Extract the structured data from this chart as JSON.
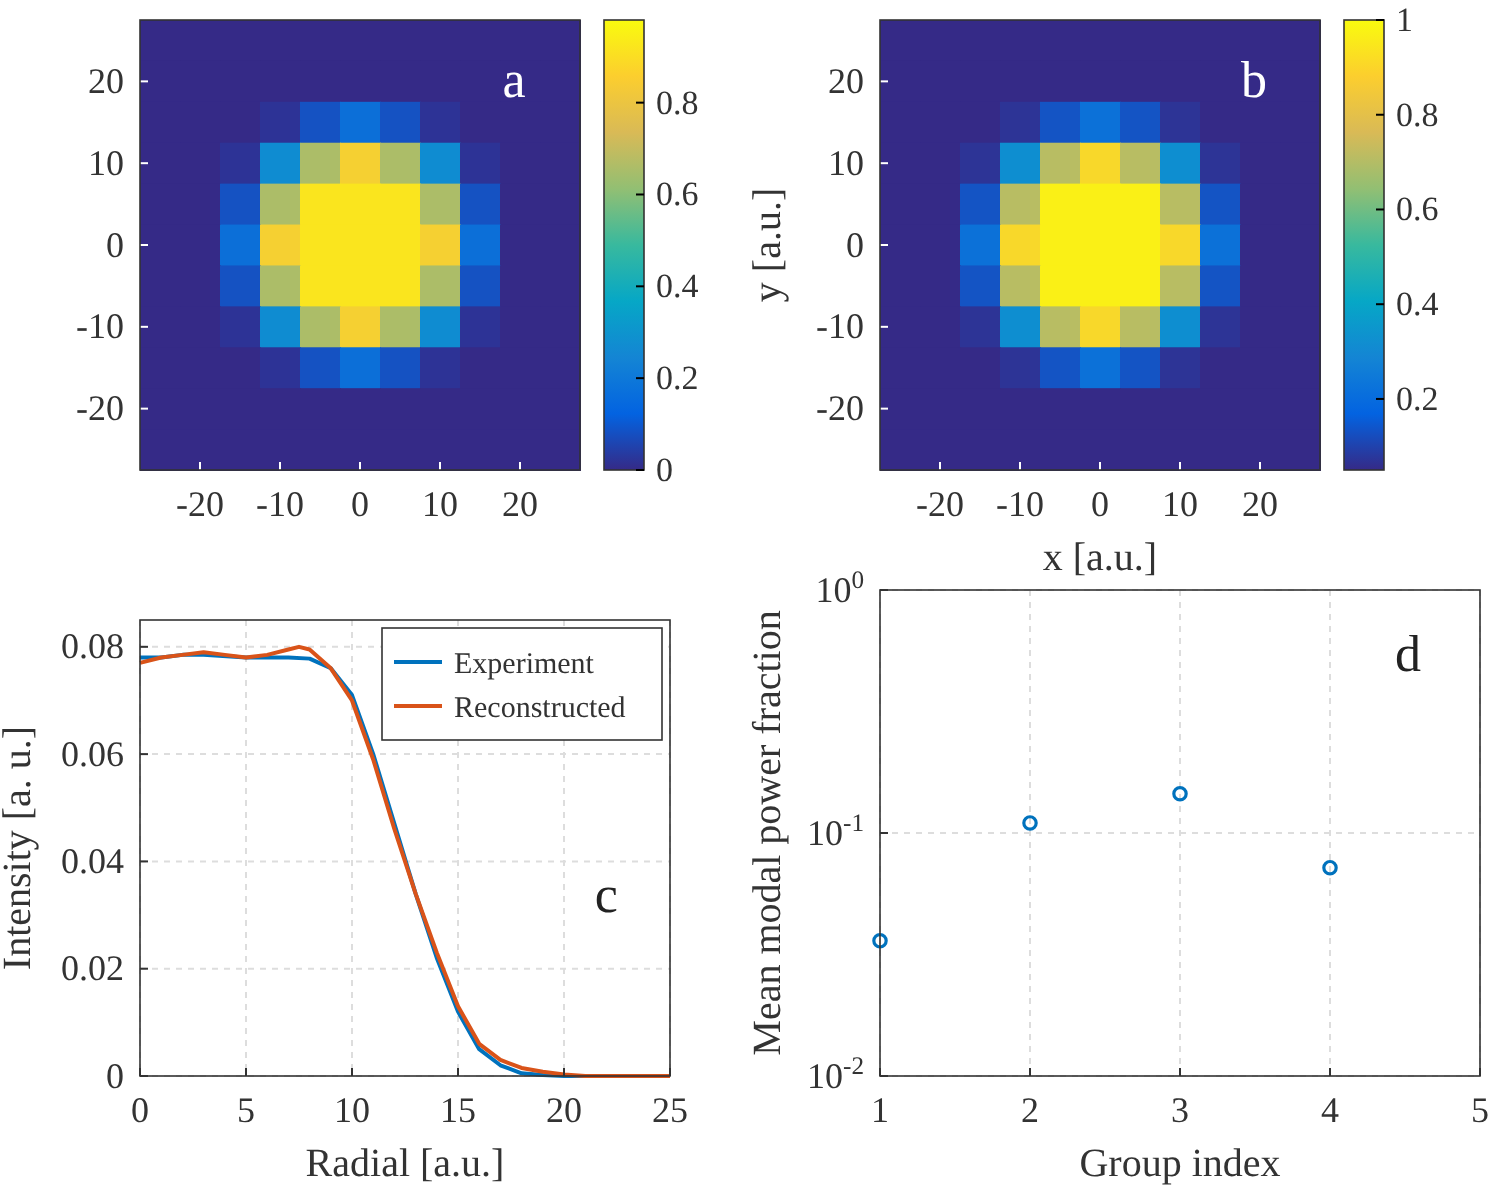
{
  "chart_data": [
    {
      "type": "heatmap",
      "annotations": [
        "a"
      ],
      "categories": [
        null,
        "-20",
        null,
        "-10",
        null,
        "0",
        null,
        "10",
        null,
        "20",
        null
      ],
      "y_categories": [
        null,
        "20",
        null,
        "10",
        null,
        "0",
        null,
        "-10",
        null,
        "-20",
        null
      ],
      "cells": [
        [
          0,
          0,
          0,
          0,
          0,
          0,
          0,
          0,
          0,
          0,
          0
        ],
        [
          0,
          0,
          0,
          0,
          0,
          0,
          0,
          0,
          0,
          0,
          0
        ],
        [
          0,
          0,
          0,
          0.02,
          0.09,
          0.17,
          0.09,
          0.02,
          0,
          0,
          0
        ],
        [
          0,
          0,
          0.02,
          0.27,
          0.66,
          0.85,
          0.66,
          0.27,
          0.02,
          0,
          0
        ],
        [
          0,
          0,
          0.09,
          0.66,
          0.92,
          0.92,
          0.92,
          0.66,
          0.09,
          0,
          0
        ],
        [
          0,
          0,
          0.17,
          0.85,
          0.92,
          0.92,
          0.92,
          0.85,
          0.17,
          0,
          0
        ],
        [
          0,
          0,
          0.09,
          0.66,
          0.92,
          0.92,
          0.92,
          0.66,
          0.09,
          0,
          0
        ],
        [
          0,
          0,
          0.02,
          0.27,
          0.66,
          0.85,
          0.66,
          0.27,
          0.02,
          0,
          0
        ],
        [
          0,
          0,
          0,
          0.02,
          0.09,
          0.17,
          0.09,
          0.02,
          0,
          0,
          0
        ],
        [
          0,
          0,
          0,
          0,
          0,
          0,
          0,
          0,
          0,
          0,
          0
        ],
        [
          0,
          0,
          0,
          0,
          0,
          0,
          0,
          0,
          0,
          0,
          0
        ]
      ],
      "clim": [
        0,
        0.98
      ],
      "cticks": [
        0,
        0.2,
        0.4,
        0.6,
        0.8
      ]
    },
    {
      "type": "heatmap",
      "annotations": [
        "b"
      ],
      "xlabel": "x [a.u.]",
      "ylabel": "y [a.u.]",
      "categories": [
        null,
        "-20",
        null,
        "-10",
        null,
        "0",
        null,
        "10",
        null,
        "20",
        null
      ],
      "y_categories": [
        null,
        "20",
        null,
        "10",
        null,
        "0",
        null,
        "-10",
        null,
        "-20",
        null
      ],
      "cells": [
        [
          0.05,
          0.05,
          0.05,
          0.05,
          0.05,
          0.05,
          0.05,
          0.05,
          0.05,
          0.05,
          0.05
        ],
        [
          0.05,
          0.05,
          0.05,
          0.05,
          0.05,
          0.05,
          0.05,
          0.05,
          0.05,
          0.05,
          0.05
        ],
        [
          0.05,
          0.05,
          0.05,
          0.07,
          0.14,
          0.22,
          0.14,
          0.07,
          0.05,
          0.05,
          0.05
        ],
        [
          0.05,
          0.05,
          0.07,
          0.32,
          0.71,
          0.9,
          0.71,
          0.32,
          0.07,
          0.05,
          0.05
        ],
        [
          0.05,
          0.05,
          0.14,
          0.71,
          0.97,
          0.97,
          0.97,
          0.71,
          0.14,
          0.05,
          0.05
        ],
        [
          0.05,
          0.05,
          0.22,
          0.9,
          0.97,
          0.97,
          0.97,
          0.9,
          0.22,
          0.05,
          0.05
        ],
        [
          0.05,
          0.05,
          0.14,
          0.71,
          0.97,
          0.97,
          0.97,
          0.71,
          0.14,
          0.05,
          0.05
        ],
        [
          0.05,
          0.05,
          0.07,
          0.32,
          0.71,
          0.9,
          0.71,
          0.32,
          0.07,
          0.05,
          0.05
        ],
        [
          0.05,
          0.05,
          0.05,
          0.07,
          0.14,
          0.22,
          0.14,
          0.07,
          0.05,
          0.05,
          0.05
        ],
        [
          0.05,
          0.05,
          0.05,
          0.05,
          0.05,
          0.05,
          0.05,
          0.05,
          0.05,
          0.05,
          0.05
        ],
        [
          0.05,
          0.05,
          0.05,
          0.05,
          0.05,
          0.05,
          0.05,
          0.05,
          0.05,
          0.05,
          0.05
        ]
      ],
      "clim": [
        0.05,
        1
      ],
      "cticks": [
        0.2,
        0.4,
        0.6,
        0.8,
        1
      ]
    },
    {
      "type": "line",
      "annotations": [
        "c"
      ],
      "xlabel": "Radial  [a.u.]",
      "ylabel": "Intensity [a. u.]",
      "xlim": [
        0,
        25
      ],
      "xticks": [
        0,
        5,
        10,
        15,
        20,
        25
      ],
      "ylim": [
        0,
        0.085
      ],
      "yticks": [
        0,
        0.02,
        0.04,
        0.06,
        0.08
      ],
      "grid": true,
      "legend": "top right",
      "series": [
        {
          "name": "Experiment",
          "color": "#0072bd",
          "x": [
            0,
            1,
            2,
            3,
            5,
            7,
            8,
            9,
            10,
            11,
            12,
            13,
            14,
            15,
            16,
            17,
            18,
            19,
            20,
            22,
            25
          ],
          "values": [
            0.078,
            0.078,
            0.0785,
            0.0785,
            0.078,
            0.078,
            0.0778,
            0.076,
            0.071,
            0.06,
            0.047,
            0.034,
            0.022,
            0.012,
            0.005,
            0.002,
            0.0005,
            0.0002,
            0,
            0,
            0
          ]
        },
        {
          "name": "Reconstructed",
          "color": "#d95319",
          "x": [
            0,
            1,
            2,
            3,
            4,
            5,
            6,
            7,
            7.5,
            8,
            9,
            10,
            11,
            12,
            13,
            14,
            15,
            16,
            17,
            18,
            19,
            20,
            21,
            25
          ],
          "values": [
            0.077,
            0.078,
            0.0785,
            0.079,
            0.0785,
            0.078,
            0.0785,
            0.0795,
            0.08,
            0.0795,
            0.076,
            0.07,
            0.059,
            0.046,
            0.034,
            0.023,
            0.013,
            0.006,
            0.003,
            0.0015,
            0.0008,
            0.0003,
            0,
            0
          ]
        }
      ]
    },
    {
      "type": "scatter",
      "annotations": [
        "d"
      ],
      "xlabel": "Group index",
      "ylabel": "Mean modal power fraction",
      "x": [
        1,
        2,
        3,
        4
      ],
      "values": [
        0.036,
        0.11,
        0.145,
        0.072
      ],
      "color": "#0072bd",
      "marker": "circle",
      "log": "y",
      "grid": true,
      "xlim": [
        1,
        5
      ],
      "xticks": [
        1,
        2,
        3,
        4,
        5
      ],
      "ylim": [
        0.01,
        1
      ],
      "yticks": [
        {
          "value": 0.01,
          "label": "10$^{-2}$"
        },
        {
          "value": 0.1,
          "label": "10$^{-1}$"
        },
        {
          "value": 1,
          "label": "10$^{0}$"
        }
      ]
    }
  ]
}
